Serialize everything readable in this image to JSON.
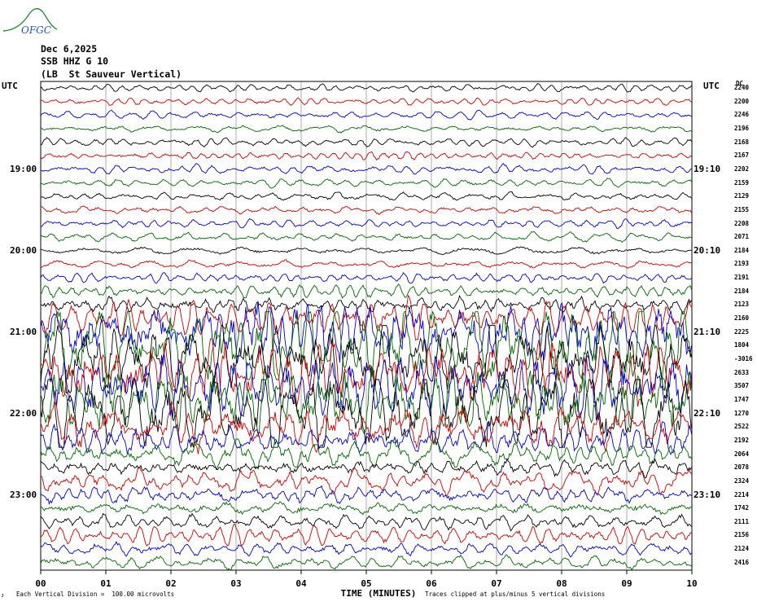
{
  "header": {
    "date": "Dec 6,2025",
    "station": "SSB HHZ G 10",
    "location": "(LB  St Sauveur Vertical)",
    "logo_text": "OFGC"
  },
  "axis": {
    "left_unit": "UTC",
    "right_unit": "UTC",
    "dc_header": "DC",
    "xlabel": "TIME (MINUTES)"
  },
  "footer": {
    "scale_mark": "ᴊ",
    "left_note": "Each Vertical Division =  100.00 microvolts",
    "right_note": "Traces clipped at plus/minus 5 vertical divisions"
  },
  "chart_data": {
    "type": "line",
    "x_ticks": [
      "00",
      "01",
      "02",
      "03",
      "04",
      "05",
      "06",
      "07",
      "08",
      "09",
      "10"
    ],
    "xlim": [
      0,
      10
    ],
    "left_hour_labels": [
      {
        "trace": 6,
        "label": "19:00"
      },
      {
        "trace": 12,
        "label": "20:00"
      },
      {
        "trace": 18,
        "label": "21:00"
      },
      {
        "trace": 24,
        "label": "22:00"
      },
      {
        "trace": 30,
        "label": "23:00"
      }
    ],
    "right_hour_labels": [
      {
        "trace": 6,
        "label": "19:10"
      },
      {
        "trace": 12,
        "label": "20:10"
      },
      {
        "trace": 18,
        "label": "21:10"
      },
      {
        "trace": 24,
        "label": "22:10"
      },
      {
        "trace": 30,
        "label": "23:10"
      }
    ],
    "trace_colors": [
      "#000000",
      "#cc0000",
      "#0000cc",
      "#006600"
    ],
    "dc_offsets": [
      "2240",
      "2200",
      "2246",
      "2196",
      "2168",
      "2167",
      "2202",
      "2159",
      "2129",
      "2155",
      "2208",
      "2071",
      "2184",
      "2193",
      "2191",
      "2184",
      "2123",
      "2160",
      "2225",
      "1804",
      "-3016",
      "2633",
      "3507",
      "1747",
      "1270",
      "2522",
      "2192",
      "2064",
      "2078",
      "2324",
      "2214",
      "1742",
      "2111",
      "2156",
      "2124",
      "2416"
    ],
    "trace_amplitude_divisions": [
      0.45,
      0.45,
      0.45,
      0.45,
      0.45,
      0.5,
      0.5,
      0.5,
      0.5,
      0.5,
      0.5,
      0.5,
      0.55,
      0.55,
      0.6,
      0.8,
      1.2,
      2.0,
      5.0,
      5.0,
      5.0,
      5.0,
      5.0,
      5.0,
      5.0,
      3.0,
      2.0,
      1.6,
      1.3,
      1.2,
      1.1,
      1.1,
      1.0,
      1.0,
      0.9,
      0.8
    ],
    "clip_divisions": 5
  }
}
